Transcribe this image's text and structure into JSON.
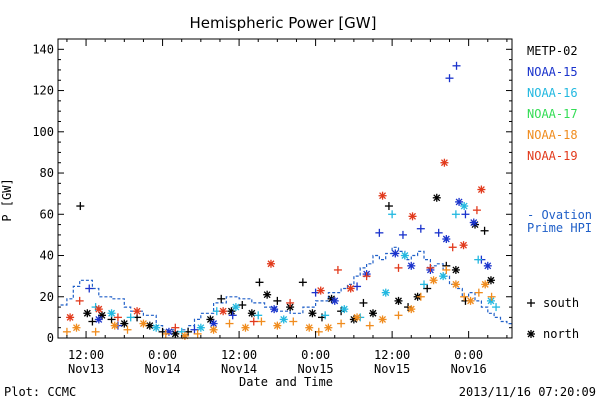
{
  "chart_data": {
    "type": "scatter",
    "title": "Hemispheric Power [GW]",
    "ylabel": "P [GW]",
    "xlabel": "Date and Time",
    "ylim": [
      0,
      145
    ],
    "yticks": [
      0,
      20,
      40,
      60,
      80,
      100,
      120,
      140
    ],
    "xlim_hours_note": "hours since 2013-11-12 12:00",
    "xticks": [
      {
        "hour": 24,
        "line1": "12:00",
        "line2": "Nov13"
      },
      {
        "hour": 36,
        "line1": "0:00",
        "line2": "Nov14"
      },
      {
        "hour": 48,
        "line1": "12:00",
        "line2": "Nov14"
      },
      {
        "hour": 60,
        "line1": "0:00",
        "line2": "Nov15"
      },
      {
        "hour": 72,
        "line1": "12:00",
        "line2": "Nov15"
      },
      {
        "hour": 84,
        "line1": "0:00",
        "line2": "Nov16"
      }
    ],
    "legend_placement": "right",
    "series": [
      {
        "name": "METP-02",
        "color": "#000000",
        "points": [
          [
            23.1,
            64,
            "+"
          ],
          [
            24.2,
            12,
            "*"
          ],
          [
            25,
            8,
            "+"
          ],
          [
            26.5,
            11,
            "*"
          ],
          [
            28,
            9,
            "+"
          ],
          [
            30,
            7,
            "*"
          ],
          [
            32,
            10,
            "+"
          ],
          [
            34,
            6,
            "*"
          ],
          [
            36,
            3,
            "+"
          ],
          [
            38,
            2,
            "*"
          ],
          [
            40,
            3,
            "+"
          ],
          [
            43.5,
            9,
            "*"
          ],
          [
            45.2,
            19,
            "+"
          ],
          [
            46.8,
            13,
            "*"
          ],
          [
            48.5,
            16,
            "+"
          ],
          [
            50,
            12,
            "*"
          ],
          [
            51.2,
            27,
            "+"
          ],
          [
            52.4,
            21,
            "*"
          ],
          [
            54,
            18,
            "+"
          ],
          [
            56,
            15,
            "*"
          ],
          [
            58,
            27,
            "+"
          ],
          [
            59.5,
            12,
            "*"
          ],
          [
            61,
            10,
            "+"
          ],
          [
            62.5,
            19,
            "*"
          ],
          [
            64,
            13,
            "+"
          ],
          [
            66,
            9,
            "*"
          ],
          [
            67.5,
            17,
            "+"
          ],
          [
            69,
            12,
            "*"
          ],
          [
            71.5,
            64,
            "+"
          ],
          [
            73,
            18,
            "*"
          ],
          [
            74.5,
            15,
            "+"
          ],
          [
            76,
            20,
            "*"
          ],
          [
            77.5,
            24,
            "+"
          ],
          [
            79,
            68,
            "*"
          ],
          [
            80.5,
            35,
            "+"
          ],
          [
            82,
            33,
            "*"
          ],
          [
            83.5,
            18,
            "+"
          ],
          [
            85,
            55,
            "*"
          ],
          [
            86.5,
            52,
            "+"
          ],
          [
            87.5,
            28,
            "*"
          ]
        ]
      },
      {
        "name": "NOAA-15",
        "color": "#1a33cc",
        "points": [
          [
            24.5,
            24,
            "+"
          ],
          [
            26,
            9,
            "*"
          ],
          [
            29,
            6,
            "+"
          ],
          [
            37,
            3,
            "*"
          ],
          [
            41,
            4,
            "+"
          ],
          [
            44,
            7,
            "*"
          ],
          [
            47,
            11,
            "+"
          ],
          [
            53.5,
            14,
            "*"
          ],
          [
            60,
            22,
            "+"
          ],
          [
            63,
            18,
            "*"
          ],
          [
            66.5,
            25,
            "+"
          ],
          [
            68,
            31,
            "*"
          ],
          [
            70,
            51,
            "+"
          ],
          [
            72.5,
            41,
            "*"
          ],
          [
            73.7,
            50,
            "+"
          ],
          [
            75,
            35,
            "*"
          ],
          [
            76.5,
            53,
            "+"
          ],
          [
            78,
            33,
            "*"
          ],
          [
            79.3,
            51,
            "+"
          ],
          [
            80.5,
            48,
            "*"
          ],
          [
            81,
            126,
            "+"
          ],
          [
            82.1,
            132,
            "+"
          ],
          [
            82.5,
            66,
            "*"
          ],
          [
            83.5,
            60,
            "+"
          ],
          [
            84.8,
            56,
            "*"
          ],
          [
            86,
            38,
            "+"
          ],
          [
            87,
            35,
            "*"
          ]
        ]
      },
      {
        "name": "NOAA-16",
        "color": "#22b8e0",
        "points": [
          [
            25.5,
            15,
            "+"
          ],
          [
            28,
            12,
            "*"
          ],
          [
            31,
            10,
            "+"
          ],
          [
            35,
            5,
            "*"
          ],
          [
            39,
            3,
            "+"
          ],
          [
            42,
            5,
            "*"
          ],
          [
            44.5,
            13,
            "+"
          ],
          [
            47.5,
            15,
            "*"
          ],
          [
            51,
            11,
            "+"
          ],
          [
            55,
            9,
            "*"
          ],
          [
            61.5,
            11,
            "+"
          ],
          [
            64.5,
            14,
            "*"
          ],
          [
            67,
            10,
            "+"
          ],
          [
            71,
            22,
            "*"
          ],
          [
            72,
            60,
            "+"
          ],
          [
            74,
            40,
            "*"
          ],
          [
            77,
            26,
            "+"
          ],
          [
            80,
            30,
            "*"
          ],
          [
            82,
            60,
            "+"
          ],
          [
            83.3,
            64,
            "*"
          ],
          [
            85.5,
            38,
            "+"
          ],
          [
            87.5,
            18,
            "*"
          ],
          [
            88.3,
            15,
            "+"
          ]
        ]
      },
      {
        "name": "NOAA-17",
        "color": "#33dd55",
        "points": []
      },
      {
        "name": "NOAA-18",
        "color": "#f08c1e",
        "points": [
          [
            21,
            3,
            "+"
          ],
          [
            22.5,
            5,
            "*"
          ],
          [
            25.5,
            3,
            "+"
          ],
          [
            28.5,
            6,
            "*"
          ],
          [
            30.5,
            4,
            "+"
          ],
          [
            33,
            7,
            "*"
          ],
          [
            36.5,
            2,
            "+"
          ],
          [
            39.5,
            1,
            "*"
          ],
          [
            41.5,
            2,
            "+"
          ],
          [
            44,
            4,
            "*"
          ],
          [
            46.5,
            7,
            "+"
          ],
          [
            49,
            5,
            "*"
          ],
          [
            51.5,
            8,
            "+"
          ],
          [
            54,
            6,
            "*"
          ],
          [
            56.5,
            8,
            "+"
          ],
          [
            59,
            5,
            "*"
          ],
          [
            60.5,
            3,
            "+"
          ],
          [
            62,
            5,
            "*"
          ],
          [
            64,
            7,
            "+"
          ],
          [
            66.5,
            10,
            "*"
          ],
          [
            68.5,
            6,
            "+"
          ],
          [
            70.5,
            9,
            "*"
          ],
          [
            73,
            11,
            "+"
          ],
          [
            75,
            14,
            "*"
          ],
          [
            76.5,
            20,
            "+"
          ],
          [
            78.5,
            28,
            "*"
          ],
          [
            80.5,
            33,
            "+"
          ],
          [
            82,
            26,
            "*"
          ],
          [
            83.3,
            20,
            "+"
          ],
          [
            84.3,
            18,
            "*"
          ],
          [
            85.6,
            22,
            "+"
          ],
          [
            86.6,
            26,
            "*"
          ],
          [
            87.6,
            20,
            "+"
          ]
        ]
      },
      {
        "name": "NOAA-19",
        "color": "#e23a1c",
        "points": [
          [
            21.5,
            10,
            "*"
          ],
          [
            23,
            18,
            "+"
          ],
          [
            26,
            14,
            "*"
          ],
          [
            29,
            10,
            "+"
          ],
          [
            32,
            13,
            "*"
          ],
          [
            38,
            5,
            "+"
          ],
          [
            45.5,
            13,
            "*"
          ],
          [
            50.3,
            8,
            "+"
          ],
          [
            53,
            36,
            "*"
          ],
          [
            56,
            17,
            "+"
          ],
          [
            60.8,
            23,
            "*"
          ],
          [
            63.5,
            33,
            "+"
          ],
          [
            65.5,
            24,
            "*"
          ],
          [
            68,
            30,
            "+"
          ],
          [
            70.5,
            69,
            "*"
          ],
          [
            73,
            34,
            "+"
          ],
          [
            75.2,
            59,
            "*"
          ],
          [
            78,
            34,
            "+"
          ],
          [
            80.2,
            85,
            "*"
          ],
          [
            81.5,
            44,
            "+"
          ],
          [
            83.2,
            45,
            "*"
          ],
          [
            85.3,
            62,
            "+"
          ],
          [
            86,
            72,
            "*"
          ]
        ]
      }
    ],
    "ovation_label": [
      "- Ovation",
      "Prime HPI"
    ],
    "ovation_color": "#1f5fc8",
    "ovation_steps": [
      [
        20,
        16
      ],
      [
        21,
        19
      ],
      [
        22,
        25
      ],
      [
        23,
        28
      ],
      [
        25,
        24
      ],
      [
        26,
        20
      ],
      [
        28,
        19
      ],
      [
        30,
        15
      ],
      [
        31,
        13
      ],
      [
        33,
        11
      ],
      [
        35,
        6
      ],
      [
        36,
        4
      ],
      [
        38,
        3
      ],
      [
        39,
        4
      ],
      [
        40,
        6
      ],
      [
        41,
        9
      ],
      [
        42,
        12
      ],
      [
        44,
        17
      ],
      [
        46,
        20
      ],
      [
        48,
        19
      ],
      [
        50,
        17
      ],
      [
        52,
        15
      ],
      [
        54,
        13
      ],
      [
        56,
        12
      ],
      [
        58,
        15
      ],
      [
        60,
        18
      ],
      [
        62,
        22
      ],
      [
        64,
        24
      ],
      [
        65,
        26
      ],
      [
        66,
        30
      ],
      [
        67,
        34
      ],
      [
        68,
        36
      ],
      [
        69,
        40
      ],
      [
        70,
        38
      ],
      [
        71,
        41
      ],
      [
        72,
        44
      ],
      [
        73,
        42
      ],
      [
        74,
        38
      ],
      [
        75,
        40
      ],
      [
        76,
        42
      ],
      [
        77,
        38
      ],
      [
        78,
        35
      ],
      [
        79,
        36
      ],
      [
        80,
        30
      ],
      [
        81,
        26
      ],
      [
        82,
        24
      ],
      [
        83,
        20
      ],
      [
        84,
        22
      ],
      [
        85,
        18
      ],
      [
        86,
        15
      ],
      [
        87,
        12
      ],
      [
        88,
        10
      ],
      [
        89,
        8
      ],
      [
        90,
        7
      ]
    ],
    "marker_key": [
      {
        "symbol": "+",
        "label": "south"
      },
      {
        "symbol": "*",
        "label": "north"
      }
    ]
  },
  "footer": {
    "plot_label": "Plot: CCMC",
    "timestamp": "2013/11/16 07:20:09"
  }
}
